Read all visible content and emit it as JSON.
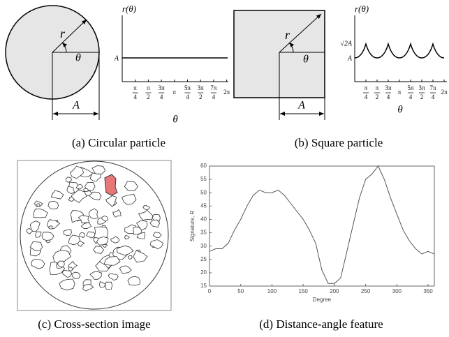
{
  "panels": [
    {
      "caption": "(a) Circular particle",
      "r": "r",
      "theta": "θ",
      "A": "A",
      "graph": {
        "ylabel": "r(θ)",
        "levels": [
          "A"
        ],
        "xlabel": "θ",
        "xticks": [
          {
            "num": "π",
            "den": "4"
          },
          {
            "num": "π",
            "den": "2"
          },
          {
            "num": "3π",
            "den": "4"
          },
          {
            "num": "π"
          },
          {
            "num": "5π",
            "den": "4"
          },
          {
            "num": "3π",
            "den": "2"
          },
          {
            "num": "7π",
            "den": "4"
          },
          {
            "num": "2π"
          }
        ]
      }
    },
    {
      "caption": "(b) Square particle",
      "r": "r",
      "theta": "θ",
      "A": "A",
      "graph": {
        "ylabel": "r(θ)",
        "levels": [
          "√2A",
          "A"
        ],
        "xlabel": "θ",
        "xticks": [
          {
            "num": "π",
            "den": "4"
          },
          {
            "num": "π",
            "den": "2"
          },
          {
            "num": "3π",
            "den": "4"
          },
          {
            "num": "π"
          },
          {
            "num": "5π",
            "den": "4"
          },
          {
            "num": "3π",
            "den": "2"
          },
          {
            "num": "7π",
            "den": "4"
          },
          {
            "num": "2π"
          }
        ]
      }
    },
    {
      "caption": "(c) Cross-section image"
    }
  ],
  "chart_data": {
    "type": "line",
    "caption": "(d) Distance-angle feature",
    "xlabel": "Degree",
    "ylabel": "Signature, R",
    "x": [
      0,
      10,
      20,
      30,
      40,
      50,
      60,
      70,
      80,
      90,
      100,
      110,
      120,
      130,
      140,
      150,
      160,
      170,
      175,
      180,
      190,
      200,
      210,
      220,
      230,
      240,
      250,
      260,
      270,
      280,
      290,
      300,
      310,
      320,
      330,
      340,
      350,
      360
    ],
    "series": [
      {
        "color": "#555555",
        "values": [
          28,
          29,
          29,
          31,
          36,
          40,
          45,
          49,
          51,
          50,
          50,
          51,
          49,
          46,
          43,
          40,
          36,
          31,
          26,
          21,
          16,
          16,
          18,
          28,
          38,
          48,
          55,
          57,
          60,
          55,
          48,
          42,
          36,
          32,
          29,
          27,
          28,
          27
        ]
      }
    ],
    "xlim": [
      0,
      360
    ],
    "ylim": [
      15,
      60
    ],
    "xticks": [
      0,
      50,
      100,
      150,
      200,
      250,
      300,
      350
    ],
    "yticks": [
      15,
      20,
      25,
      30,
      35,
      40,
      45,
      50,
      55,
      60
    ]
  }
}
